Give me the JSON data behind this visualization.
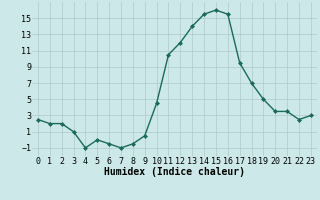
{
  "x": [
    0,
    1,
    2,
    3,
    4,
    5,
    6,
    7,
    8,
    9,
    10,
    11,
    12,
    13,
    14,
    15,
    16,
    17,
    18,
    19,
    20,
    21,
    22,
    23
  ],
  "y": [
    2.5,
    2.0,
    2.0,
    1.0,
    -1.0,
    0.0,
    -0.5,
    -1.0,
    -0.5,
    0.5,
    4.5,
    10.5,
    12.0,
    14.0,
    15.5,
    16.0,
    15.5,
    9.5,
    7.0,
    5.0,
    3.5,
    3.5,
    2.5,
    3.0
  ],
  "line_color": "#1a6b5a",
  "marker": "D",
  "marker_size": 2,
  "line_width": 1.0,
  "xlabel": "Humidex (Indice chaleur)",
  "ylim": [
    -2,
    17
  ],
  "xlim": [
    -0.5,
    23.5
  ],
  "yticks": [
    -1,
    1,
    3,
    5,
    7,
    9,
    11,
    13,
    15
  ],
  "xticks": [
    0,
    1,
    2,
    3,
    4,
    5,
    6,
    7,
    8,
    9,
    10,
    11,
    12,
    13,
    14,
    15,
    16,
    17,
    18,
    19,
    20,
    21,
    22,
    23
  ],
  "background_color": "#cce8e8",
  "grid_color": "#b0c8c8",
  "xlabel_fontsize": 7,
  "tick_fontsize": 6
}
